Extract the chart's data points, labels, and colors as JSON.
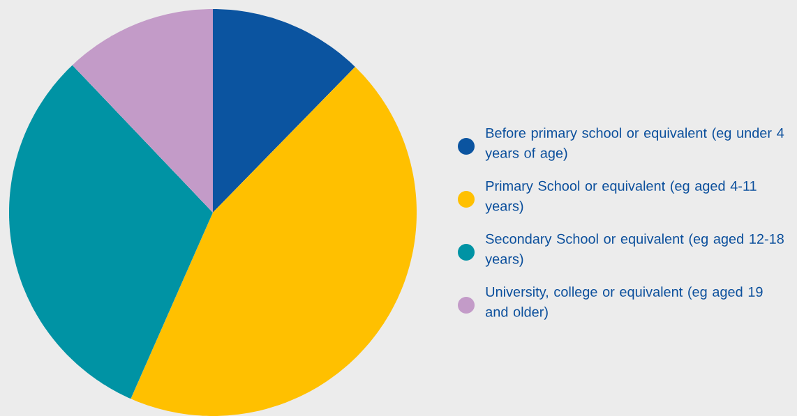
{
  "chart_data": {
    "type": "pie",
    "categories": [
      "Before primary school or equivalent (eg under 4 years of age)",
      "Primary School or equivalent (eg aged 4-11 years)",
      "Secondary School or equivalent (eg aged 12-18 years)",
      "University, college or equivalent (eg aged 19 and older)"
    ],
    "values": [
      12.3,
      44.3,
      31.3,
      12.1
    ],
    "colors": [
      "#0b54a0",
      "#ffc000",
      "#0093a4",
      "#c39bc8"
    ],
    "legend": "right"
  }
}
